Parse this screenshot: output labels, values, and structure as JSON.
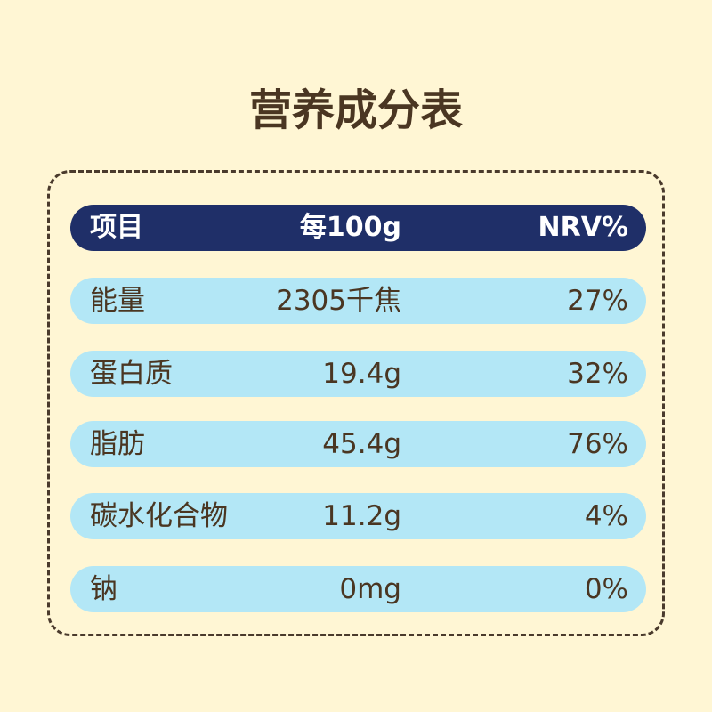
{
  "title": "营养成分表",
  "header": {
    "item": "项目",
    "per100g": "每100g",
    "nrv": "NRV%"
  },
  "rows": [
    {
      "name": "能量",
      "amount": "2305千焦",
      "nrv": "27%"
    },
    {
      "name": "蛋白质",
      "amount": "19.4g",
      "nrv": "32%"
    },
    {
      "name": "脂肪",
      "amount": "45.4g",
      "nrv": "76%"
    },
    {
      "name": "碳水化合物",
      "amount": "11.2g",
      "nrv": "4%"
    },
    {
      "name": "钠",
      "amount": "0mg",
      "nrv": "0%"
    }
  ],
  "colors": {
    "background": "#fff6d4",
    "header_bg": "#1f2f68",
    "row_bg": "#b3e7f6",
    "text": "#4a3622",
    "border": "#4a3a2c"
  }
}
